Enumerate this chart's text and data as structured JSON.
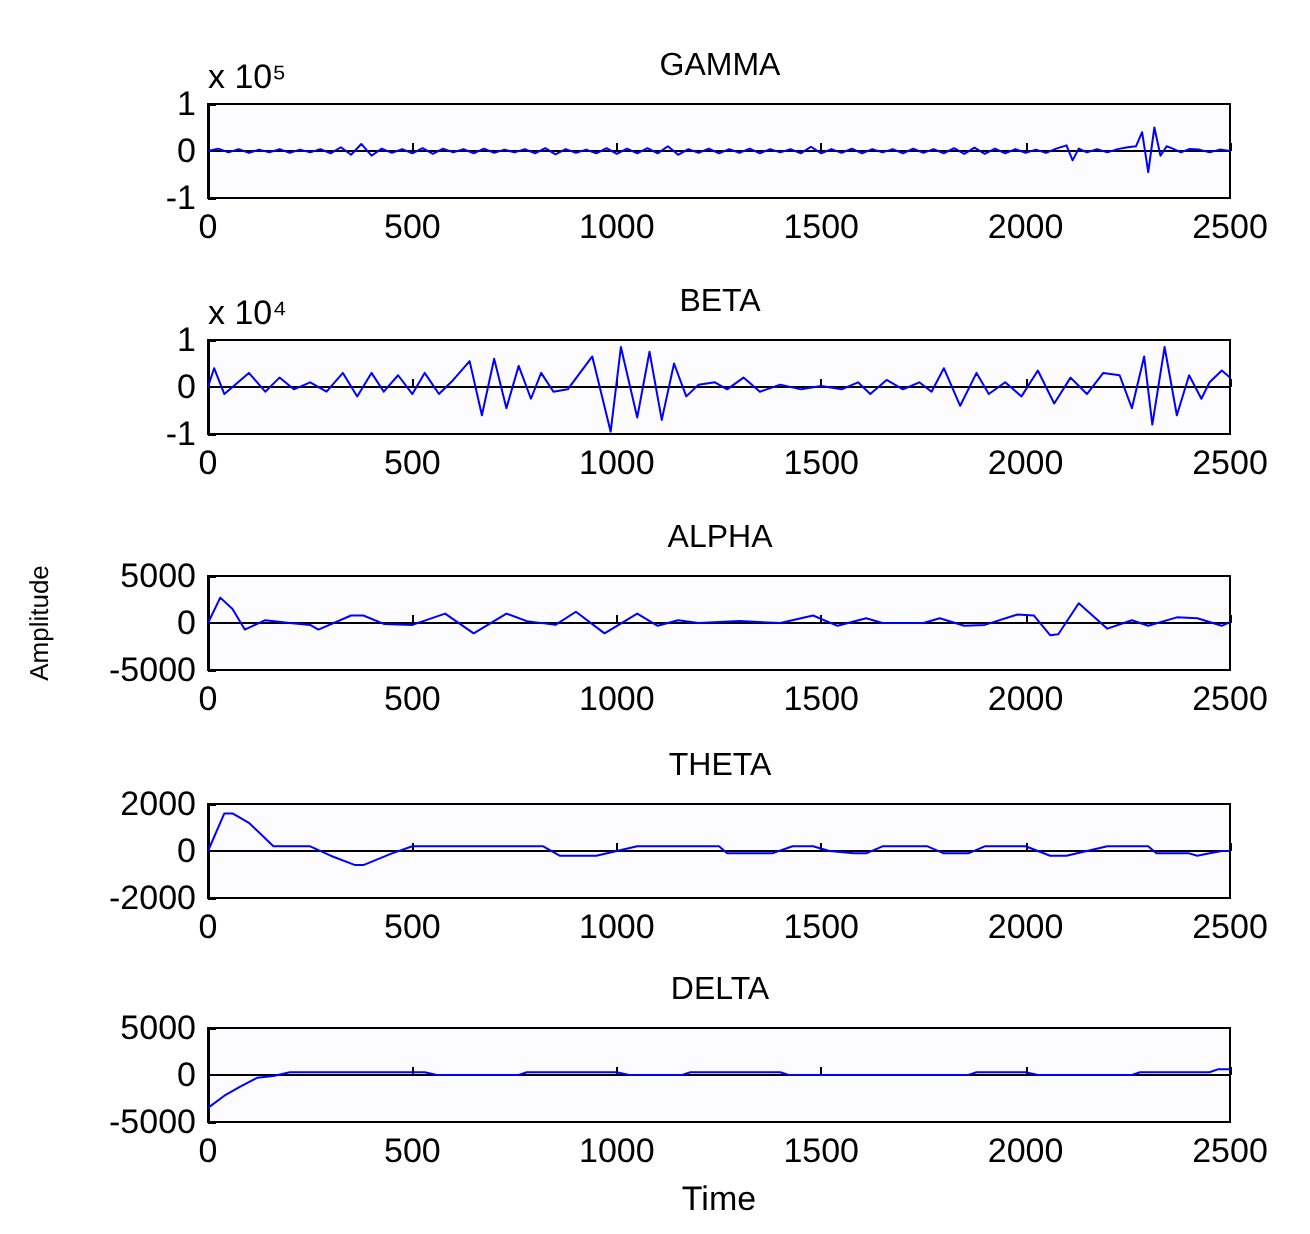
{
  "chart_data": [
    {
      "type": "line",
      "title": "GAMMA",
      "annotations": [
        "x 10⁵"
      ],
      "marker": "none",
      "xlim": [
        0,
        2500
      ],
      "xticks": [
        0,
        500,
        1000,
        1500,
        2000,
        2500
      ],
      "ylim": [
        -1,
        1
      ],
      "yticks": [
        -1,
        0,
        1
      ],
      "series": [
        {
          "color": "#0000ff",
          "x": [
            0,
            25,
            50,
            75,
            100,
            125,
            150,
            175,
            200,
            225,
            250,
            275,
            300,
            325,
            350,
            375,
            400,
            425,
            450,
            475,
            500,
            525,
            550,
            575,
            600,
            625,
            650,
            675,
            700,
            725,
            750,
            775,
            800,
            825,
            850,
            875,
            900,
            925,
            950,
            975,
            1000,
            1025,
            1050,
            1075,
            1100,
            1125,
            1150,
            1175,
            1200,
            1225,
            1250,
            1275,
            1300,
            1325,
            1350,
            1375,
            1400,
            1425,
            1450,
            1475,
            1500,
            1525,
            1550,
            1575,
            1600,
            1625,
            1650,
            1675,
            1700,
            1725,
            1750,
            1775,
            1800,
            1825,
            1850,
            1875,
            1900,
            1925,
            1950,
            1975,
            2000,
            2025,
            2050,
            2075,
            2100,
            2115,
            2130,
            2150,
            2175,
            2200,
            2225,
            2250,
            2270,
            2285,
            2300,
            2315,
            2330,
            2345,
            2360,
            2380,
            2400,
            2425,
            2450,
            2475,
            2500
          ],
          "values": [
            0,
            0.05,
            -0.03,
            0.04,
            -0.04,
            0.03,
            -0.03,
            0.04,
            -0.04,
            0.03,
            -0.03,
            0.04,
            -0.05,
            0.08,
            -0.08,
            0.15,
            -0.1,
            0.05,
            -0.04,
            0.04,
            -0.05,
            0.06,
            -0.06,
            0.05,
            -0.03,
            0.04,
            -0.05,
            0.05,
            -0.04,
            0.03,
            -0.03,
            0.04,
            -0.05,
            0.06,
            -0.07,
            0.04,
            -0.04,
            0.03,
            -0.05,
            0.06,
            -0.06,
            0.05,
            -0.05,
            0.06,
            -0.05,
            0.1,
            -0.08,
            0.04,
            -0.04,
            0.05,
            -0.05,
            0.04,
            -0.04,
            0.05,
            -0.05,
            0.04,
            -0.03,
            0.04,
            -0.05,
            0.09,
            -0.05,
            0.04,
            -0.04,
            0.05,
            -0.05,
            0.04,
            -0.03,
            0.04,
            -0.05,
            0.05,
            -0.04,
            0.04,
            -0.05,
            0.06,
            -0.06,
            0.07,
            -0.06,
            0.05,
            -0.05,
            0.04,
            -0.04,
            0.03,
            -0.04,
            0.05,
            0.12,
            -0.2,
            0.05,
            -0.03,
            0.04,
            -0.03,
            0.04,
            0.08,
            0.1,
            0.4,
            -0.45,
            0.5,
            -0.1,
            0.1,
            0.05,
            -0.03,
            0.04,
            0.03,
            -0.03,
            0.03,
            0
          ]
        }
      ]
    },
    {
      "type": "line",
      "title": "BETA",
      "annotations": [
        "x 10⁴"
      ],
      "marker": "none",
      "xlim": [
        0,
        2500
      ],
      "xticks": [
        0,
        500,
        1000,
        1500,
        2000,
        2500
      ],
      "ylim": [
        -1,
        1
      ],
      "yticks": [
        -1,
        0,
        1
      ],
      "series": [
        {
          "color": "#0000ff",
          "x": [
            0,
            15,
            40,
            100,
            140,
            175,
            210,
            250,
            290,
            330,
            365,
            400,
            430,
            465,
            500,
            530,
            565,
            600,
            640,
            670,
            700,
            730,
            760,
            790,
            815,
            845,
            880,
            940,
            985,
            1010,
            1050,
            1080,
            1110,
            1140,
            1170,
            1200,
            1240,
            1270,
            1310,
            1350,
            1400,
            1450,
            1500,
            1550,
            1590,
            1620,
            1660,
            1700,
            1740,
            1770,
            1800,
            1840,
            1880,
            1910,
            1950,
            1990,
            2030,
            2070,
            2110,
            2150,
            2190,
            2230,
            2260,
            2290,
            2310,
            2340,
            2370,
            2400,
            2430,
            2450,
            2480,
            2500
          ],
          "values": [
            0,
            0.4,
            -0.15,
            0.3,
            -0.1,
            0.2,
            -0.05,
            0.1,
            -0.1,
            0.3,
            -0.2,
            0.3,
            -0.1,
            0.25,
            -0.15,
            0.3,
            -0.15,
            0.15,
            0.55,
            -0.6,
            0.6,
            -0.45,
            0.45,
            -0.25,
            0.3,
            -0.1,
            -0.05,
            0.65,
            -0.95,
            0.85,
            -0.65,
            0.75,
            -0.7,
            0.5,
            -0.2,
            0.05,
            0.1,
            -0.05,
            0.2,
            -0.1,
            0.05,
            -0.05,
            0.02,
            -0.05,
            0.1,
            -0.15,
            0.15,
            -0.05,
            0.1,
            -0.1,
            0.4,
            -0.4,
            0.3,
            -0.15,
            0.1,
            -0.2,
            0.35,
            -0.35,
            0.2,
            -0.15,
            0.3,
            0.25,
            -0.45,
            0.65,
            -0.8,
            0.85,
            -0.6,
            0.25,
            -0.25,
            0.1,
            0.35,
            0.2
          ]
        }
      ]
    },
    {
      "type": "line",
      "title": "ALPHA",
      "ylabel": "Amplitude",
      "marker": "none",
      "xlim": [
        0,
        2500
      ],
      "xticks": [
        0,
        500,
        1000,
        1500,
        2000,
        2500
      ],
      "ylim": [
        -5000,
        5000
      ],
      "yticks": [
        -5000,
        0,
        5000
      ],
      "series": [
        {
          "color": "#0000ff",
          "x": [
            0,
            30,
            60,
            90,
            140,
            200,
            250,
            270,
            350,
            380,
            430,
            500,
            580,
            650,
            730,
            780,
            850,
            900,
            970,
            1050,
            1100,
            1150,
            1200,
            1300,
            1400,
            1480,
            1540,
            1610,
            1650,
            1750,
            1790,
            1850,
            1900,
            1980,
            2020,
            2060,
            2080,
            2130,
            2200,
            2260,
            2300,
            2370,
            2420,
            2480,
            2500
          ],
          "values": [
            0,
            2700,
            1500,
            -700,
            300,
            0,
            -200,
            -700,
            800,
            800,
            -100,
            -200,
            1000,
            -1100,
            1000,
            200,
            -200,
            1200,
            -1100,
            1000,
            -300,
            300,
            0,
            200,
            0,
            800,
            -300,
            500,
            0,
            0,
            500,
            -300,
            -200,
            900,
            800,
            -1300,
            -1200,
            2100,
            -600,
            300,
            -300,
            600,
            500,
            -300,
            100
          ]
        }
      ]
    },
    {
      "type": "line",
      "title": "THETA",
      "marker": "none",
      "xlim": [
        0,
        2500
      ],
      "xticks": [
        0,
        500,
        1000,
        1500,
        2000,
        2500
      ],
      "ylim": [
        -2000,
        2000
      ],
      "yticks": [
        -2000,
        0,
        2000
      ],
      "series": [
        {
          "color": "#0000ff",
          "x": [
            0,
            40,
            60,
            100,
            160,
            250,
            300,
            360,
            380,
            450,
            500,
            820,
            860,
            950,
            1000,
            1050,
            1250,
            1270,
            1380,
            1430,
            1480,
            1520,
            1580,
            1610,
            1650,
            1760,
            1800,
            1860,
            1900,
            2000,
            2060,
            2100,
            2150,
            2200,
            2300,
            2320,
            2400,
            2420,
            2450,
            2480,
            2500
          ],
          "values": [
            0,
            1600,
            1600,
            1200,
            200,
            200,
            -200,
            -600,
            -600,
            -100,
            200,
            200,
            -200,
            -200,
            0,
            200,
            200,
            -100,
            -100,
            200,
            200,
            0,
            -100,
            -100,
            200,
            200,
            -100,
            -100,
            200,
            200,
            -200,
            -200,
            0,
            200,
            200,
            -100,
            -100,
            -200,
            -100,
            0,
            0
          ]
        }
      ]
    },
    {
      "type": "line",
      "title": "DELTA",
      "xlabel": "Time",
      "marker": "none",
      "xlim": [
        0,
        2500
      ],
      "xticks": [
        0,
        500,
        1000,
        1500,
        2000,
        2500
      ],
      "ylim": [
        -5000,
        5000
      ],
      "yticks": [
        -5000,
        0,
        5000
      ],
      "series": [
        {
          "color": "#0000ff",
          "x": [
            0,
            40,
            80,
            120,
            160,
            200,
            530,
            560,
            760,
            780,
            1000,
            1030,
            1160,
            1180,
            1400,
            1420,
            1860,
            1880,
            2000,
            2030,
            2260,
            2280,
            2450,
            2470,
            2500
          ],
          "values": [
            -3500,
            -2200,
            -1200,
            -300,
            -100,
            300,
            300,
            0,
            0,
            300,
            300,
            0,
            0,
            300,
            300,
            0,
            0,
            300,
            300,
            0,
            0,
            300,
            300,
            600,
            600
          ]
        }
      ]
    }
  ]
}
